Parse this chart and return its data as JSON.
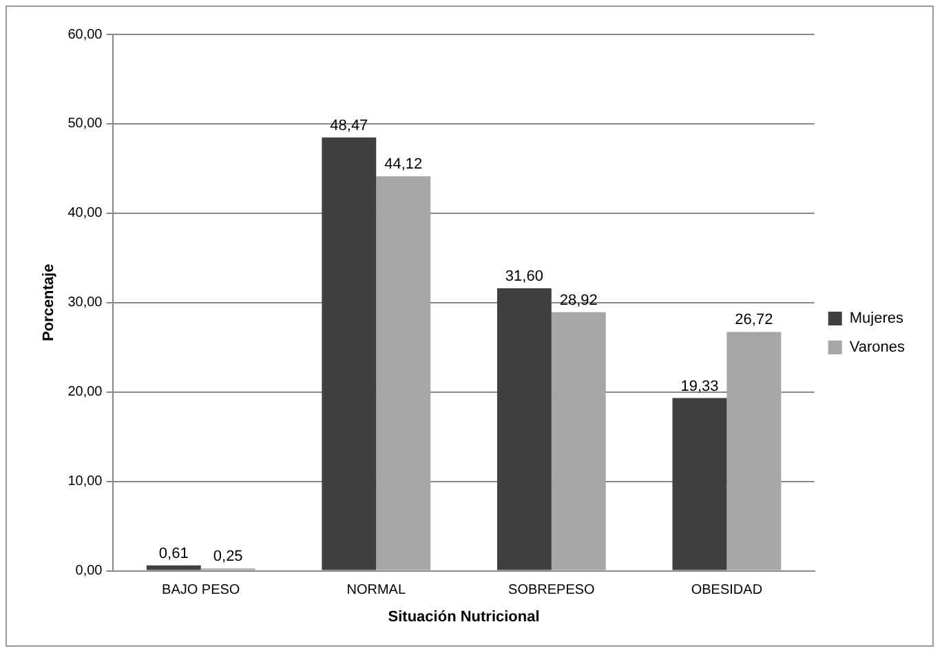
{
  "chart_data": {
    "type": "bar",
    "xlabel": "Situación Nutricional",
    "ylabel": "Porcentaje",
    "categories": [
      "BAJO PESO",
      "NORMAL",
      "SOBREPESO",
      "OBESIDAD"
    ],
    "series": [
      {
        "name": "Mujeres",
        "color": "#404040",
        "values": [
          0.61,
          48.47,
          31.6,
          19.33
        ],
        "value_labels": [
          "0,61",
          "48,47",
          "31,60",
          "19,33"
        ]
      },
      {
        "name": "Varones",
        "color": "#a6a6a6",
        "values": [
          0.25,
          44.12,
          28.92,
          26.72
        ],
        "value_labels": [
          "0,25",
          "44,12",
          "28,92",
          "26,72"
        ]
      }
    ],
    "ylim": [
      0,
      60
    ],
    "yticks": [
      {
        "value": 0,
        "label": "0,00"
      },
      {
        "value": 10,
        "label": "10,00"
      },
      {
        "value": 20,
        "label": "20,00"
      },
      {
        "value": 30,
        "label": "30,00"
      },
      {
        "value": 40,
        "label": "40,00"
      },
      {
        "value": 50,
        "label": "50,00"
      },
      {
        "value": 60,
        "label": "60,00"
      }
    ],
    "grid": "y",
    "legend": "right"
  }
}
